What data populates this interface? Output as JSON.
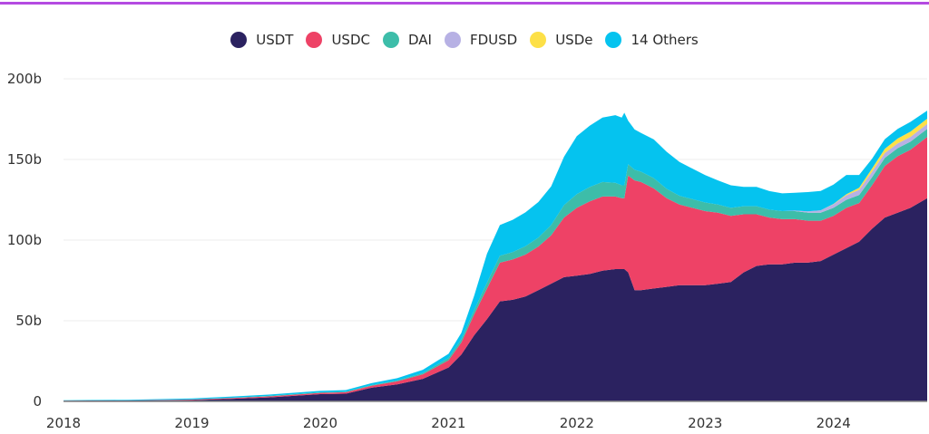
{
  "colors": {
    "accent_bar": "#b44be1",
    "grid": "#ececec",
    "axis": "#888888"
  },
  "chart_data": {
    "type": "area",
    "stacked": true,
    "title": "",
    "xlabel": "",
    "ylabel": "",
    "xlim": [
      2018.0,
      2024.73
    ],
    "ylim": [
      0,
      200
    ],
    "y_unit": "b",
    "grid": true,
    "legend_position": "top",
    "x_ticks": [
      {
        "value": 2018,
        "label": "2018"
      },
      {
        "value": 2019,
        "label": "2019"
      },
      {
        "value": 2020,
        "label": "2020"
      },
      {
        "value": 2021,
        "label": "2021"
      },
      {
        "value": 2022,
        "label": "2022"
      },
      {
        "value": 2023,
        "label": "2023"
      },
      {
        "value": 2024,
        "label": "2024"
      }
    ],
    "y_ticks": [
      {
        "value": 0,
        "label": "0"
      },
      {
        "value": 50,
        "label": "50b"
      },
      {
        "value": 100,
        "label": "100b"
      },
      {
        "value": 150,
        "label": "150b"
      },
      {
        "value": 200,
        "label": "200b"
      }
    ],
    "x": [
      2018.0,
      2018.5,
      2019.0,
      2019.3,
      2019.6,
      2020.0,
      2020.2,
      2020.4,
      2020.6,
      2020.8,
      2021.0,
      2021.1,
      2021.2,
      2021.3,
      2021.4,
      2021.5,
      2021.6,
      2021.7,
      2021.8,
      2021.9,
      2022.0,
      2022.1,
      2022.2,
      2022.3,
      2022.35,
      2022.37,
      2022.4,
      2022.45,
      2022.5,
      2022.6,
      2022.7,
      2022.8,
      2022.9,
      2023.0,
      2023.1,
      2023.2,
      2023.3,
      2023.4,
      2023.5,
      2023.6,
      2023.7,
      2023.8,
      2023.9,
      2024.0,
      2024.1,
      2024.2,
      2024.3,
      2024.4,
      2024.5,
      2024.6,
      2024.73
    ],
    "series": [
      {
        "name": "USDT",
        "color": "#2b2260",
        "values": [
          0.5,
          0.6,
          0.8,
          1.5,
          2.5,
          4.5,
          4.8,
          8.5,
          10.5,
          14,
          21,
          29,
          41,
          51,
          62,
          63,
          65,
          69,
          73,
          77,
          78,
          79,
          81,
          82,
          82,
          82,
          80,
          69,
          69,
          70,
          71,
          72,
          72,
          72,
          73,
          74,
          80,
          84,
          85,
          85,
          86,
          86,
          87,
          91,
          95,
          99,
          107,
          114,
          117,
          120,
          126
        ]
      },
      {
        "name": "USDC",
        "color": "#ee4266",
        "values": [
          0,
          0,
          0.3,
          0.5,
          0.6,
          0.8,
          0.9,
          1.2,
          1.9,
          2.8,
          4.5,
          7.5,
          13,
          19,
          24,
          25,
          26,
          27,
          30,
          37,
          42,
          45,
          46,
          45,
          44,
          44,
          60,
          68,
          67,
          62,
          55,
          50,
          48,
          46,
          44,
          41,
          36,
          32,
          29,
          28,
          27,
          26,
          25,
          24,
          25,
          24,
          27,
          32,
          35,
          36,
          38
        ]
      },
      {
        "name": "DAI",
        "color": "#3dbda9",
        "values": [
          0,
          0,
          0.1,
          0.2,
          0.3,
          0.3,
          0.3,
          0.4,
          0.5,
          0.8,
          1.4,
          2,
          2.6,
          3.6,
          4.3,
          4.6,
          5.2,
          5.6,
          6.3,
          7.7,
          8.5,
          8.9,
          9,
          8.5,
          8,
          8,
          7,
          6.6,
          6.4,
          6.4,
          5.8,
          5.5,
          5.4,
          5.3,
          5,
          5,
          5,
          5,
          4.9,
          5,
          5,
          5,
          5,
          5,
          5,
          5,
          5,
          5,
          5,
          5,
          5
        ]
      },
      {
        "name": "FDUSD",
        "color": "#b7b1e4",
        "values": [
          0,
          0,
          0,
          0,
          0,
          0,
          0,
          0,
          0,
          0,
          0,
          0,
          0,
          0,
          0,
          0,
          0,
          0,
          0,
          0,
          0,
          0,
          0,
          0,
          0,
          0,
          0,
          0,
          0,
          0,
          0,
          0,
          0,
          0,
          0,
          0,
          0,
          0,
          0,
          0,
          0.3,
          0.8,
          1.5,
          2.2,
          2.8,
          3.2,
          3.4,
          3,
          3,
          3,
          3
        ]
      },
      {
        "name": "USDe",
        "color": "#fde047",
        "values": [
          0,
          0,
          0,
          0,
          0,
          0,
          0,
          0,
          0,
          0,
          0,
          0,
          0,
          0,
          0,
          0,
          0,
          0,
          0,
          0,
          0,
          0,
          0,
          0,
          0,
          0,
          0,
          0,
          0,
          0,
          0,
          0,
          0,
          0,
          0,
          0,
          0,
          0,
          0,
          0,
          0,
          0,
          0,
          0.2,
          0.6,
          1.2,
          2,
          2.6,
          3,
          3.3,
          3.3
        ]
      },
      {
        "name": "14 Others",
        "color": "#05c3ef",
        "values": [
          0.2,
          0.4,
          0.6,
          0.7,
          0.8,
          0.9,
          1,
          1.2,
          1.5,
          2,
          2.6,
          4,
          9,
          18,
          19,
          20,
          21,
          22,
          24,
          30,
          36,
          38,
          40,
          42,
          42,
          45,
          27,
          25,
          24,
          24,
          23,
          21,
          19,
          17,
          15,
          14,
          12,
          12,
          11.5,
          11,
          11,
          12,
          12,
          12,
          12,
          8,
          6,
          6,
          6,
          6,
          5
        ]
      }
    ]
  }
}
